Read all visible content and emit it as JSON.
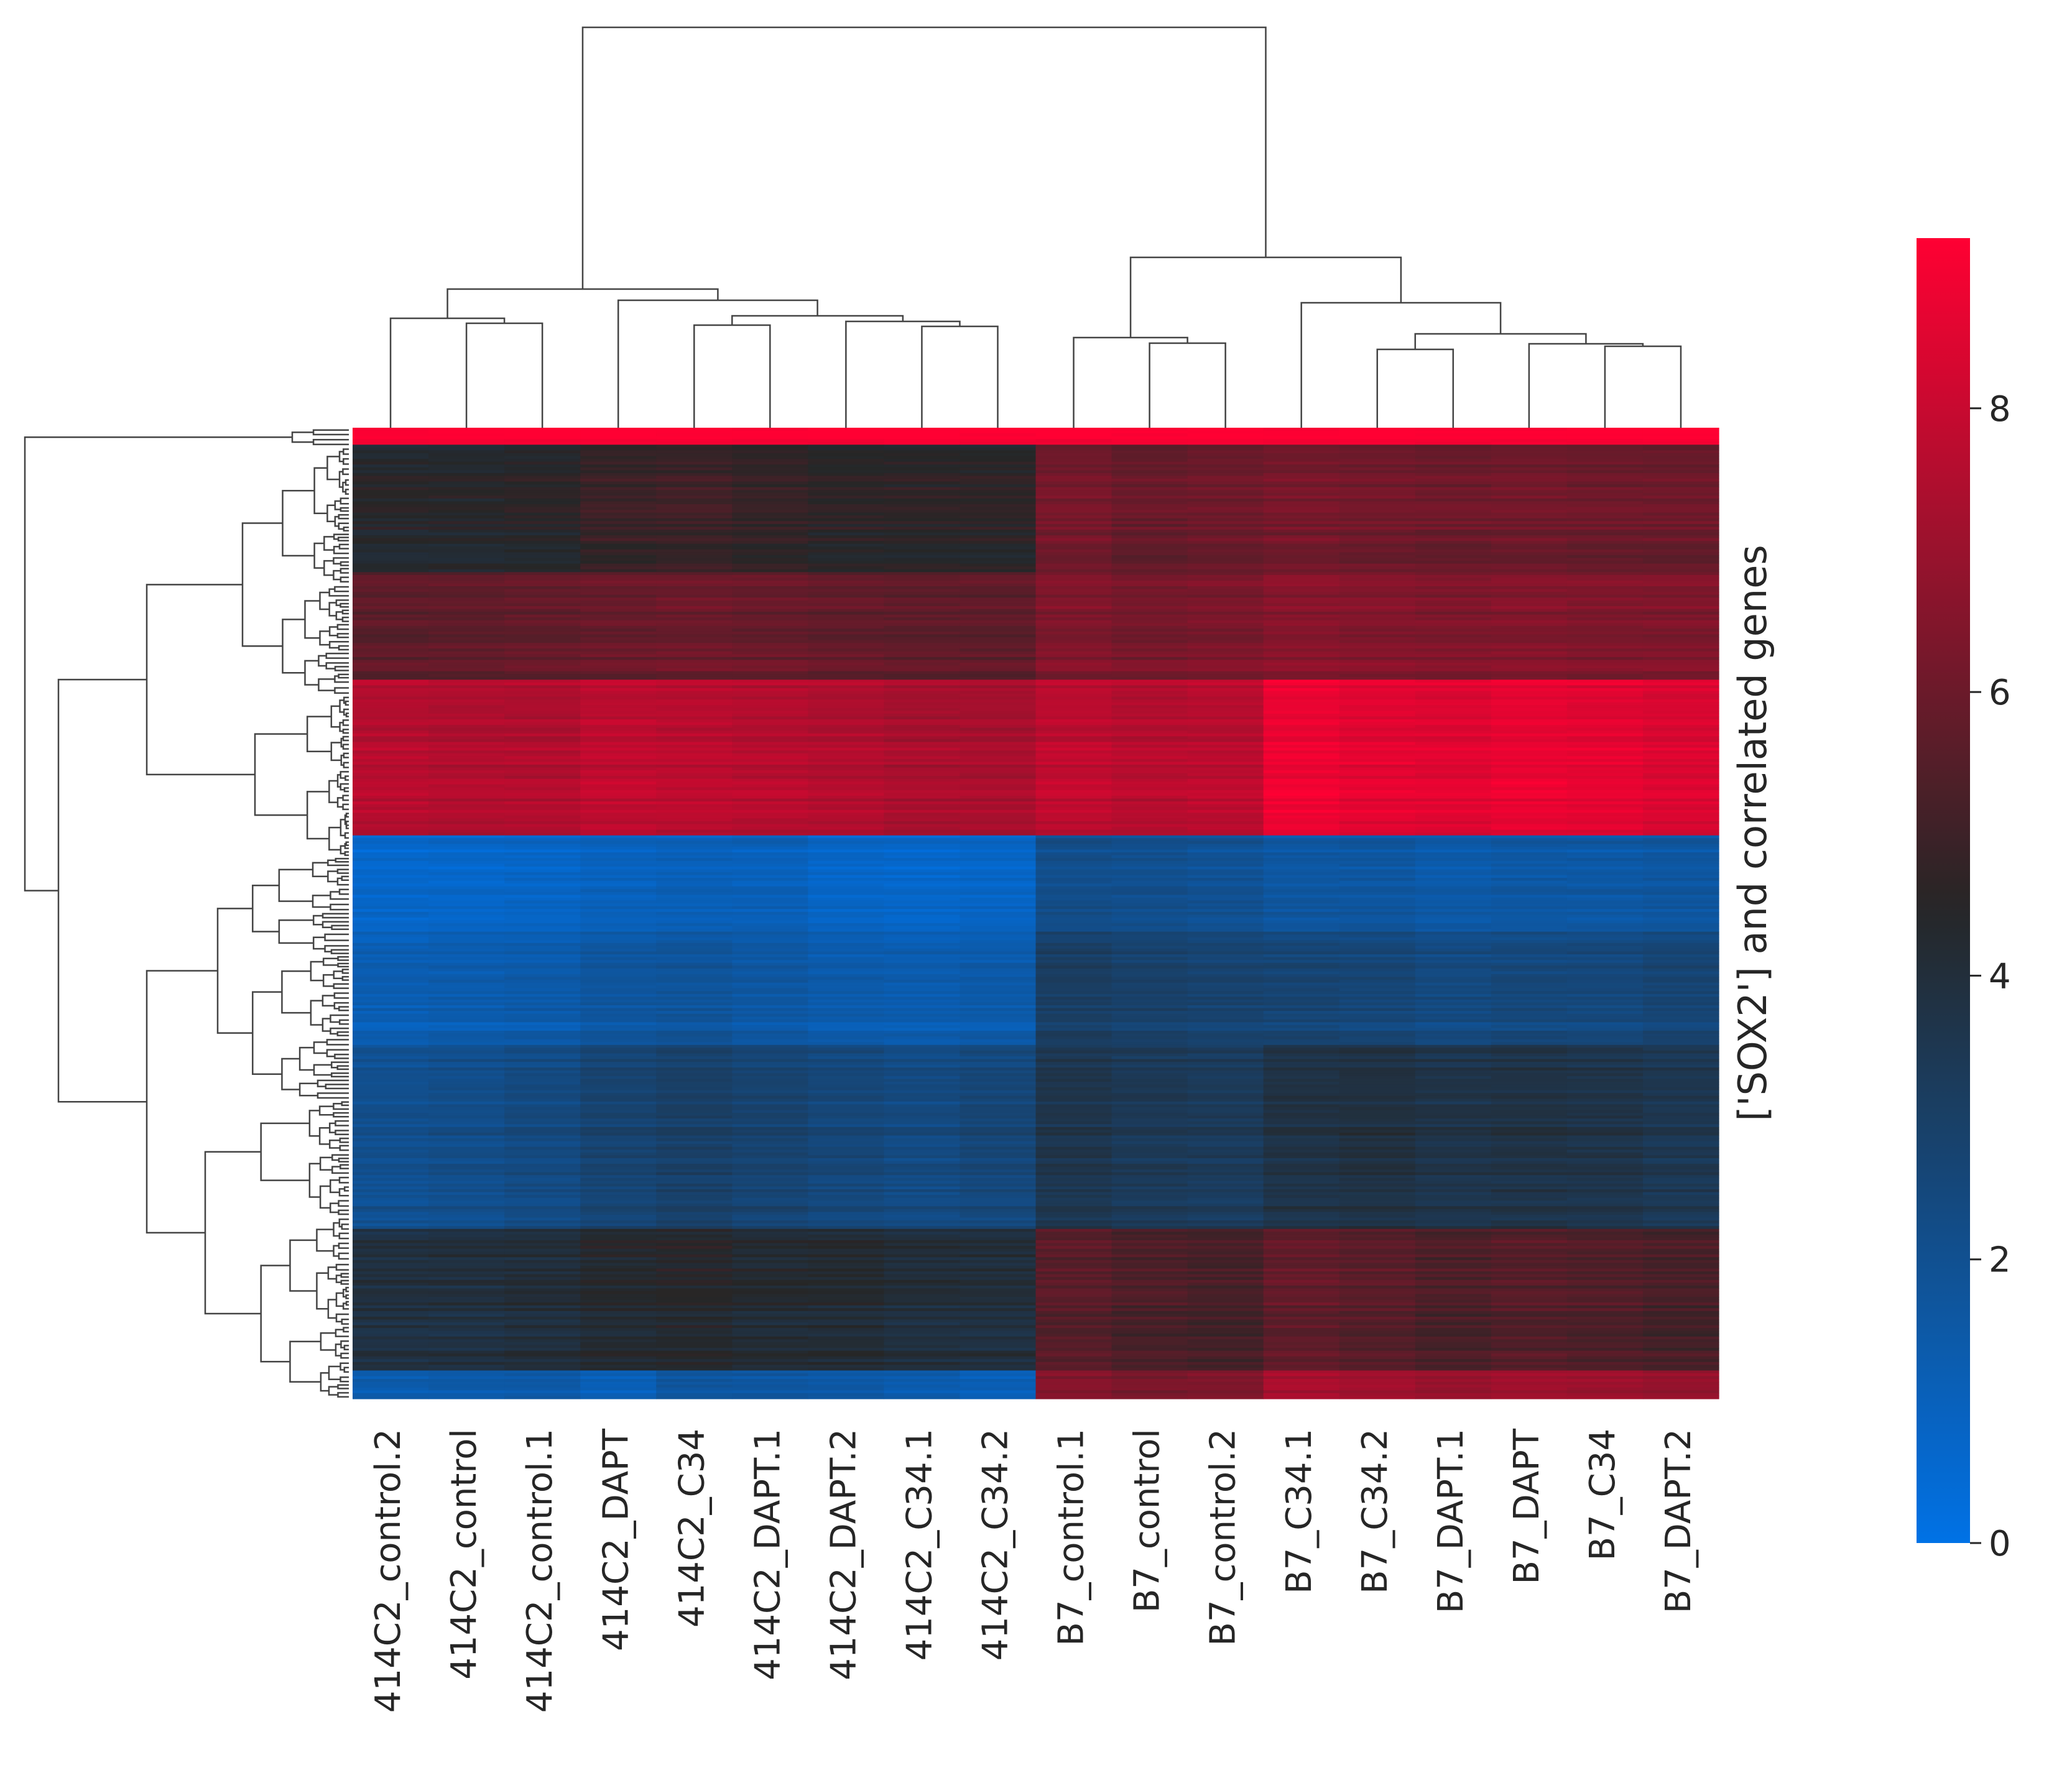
{
  "chart_data": {
    "type": "heatmap",
    "subtype": "clustermap",
    "ylabel": "['SOX2'] and correlated genes",
    "xlabel": "",
    "columns": [
      "414C2_control.2",
      "414C2_control",
      "414C2_control.1",
      "414C2_DAPT",
      "414C2_C34",
      "414C2_DAPT.1",
      "414C2_DAPT.2",
      "414C2_C34.1",
      "414C2_C34.2",
      "B7_control.1",
      "B7_control",
      "B7_control.2",
      "B7_C34.1",
      "B7_C34.2",
      "B7_DAPT.1",
      "B7_DAPT",
      "B7_C34",
      "B7_DAPT.2"
    ],
    "row_labels_shown": false,
    "colorbar": {
      "min": 0,
      "max": 9.2,
      "ticks": [
        0,
        2,
        4,
        6,
        8
      ],
      "tick_labels": [
        "0",
        "2",
        "4",
        "6",
        "8"
      ],
      "colormap": [
        "#0072e6",
        "#262626",
        "#ff0033"
      ],
      "center": 4.5
    },
    "row_blocks": [
      {
        "rows": 6,
        "values": [
          9.0,
          9.0,
          9.0,
          9.0,
          9.0,
          9.0,
          9.0,
          9.0,
          9.0,
          9.0,
          9.0,
          9.0,
          9.0,
          9.0,
          9.0,
          9.0,
          9.0,
          9.0
        ]
      },
      {
        "rows": 45,
        "values": [
          4.4,
          4.4,
          4.5,
          4.9,
          5.0,
          4.8,
          4.6,
          4.6,
          4.6,
          6.2,
          5.9,
          6.0,
          6.2,
          6.1,
          6.0,
          6.1,
          6.0,
          6.0
        ]
      },
      {
        "rows": 38,
        "values": [
          5.7,
          5.7,
          5.8,
          5.9,
          6.0,
          5.9,
          5.8,
          5.7,
          5.7,
          6.4,
          6.2,
          6.3,
          6.6,
          6.5,
          6.4,
          6.5,
          6.4,
          6.4
        ]
      },
      {
        "rows": 55,
        "values": [
          7.6,
          7.5,
          7.5,
          7.8,
          7.7,
          7.6,
          7.5,
          7.3,
          7.3,
          7.8,
          7.6,
          7.7,
          8.8,
          8.6,
          8.5,
          8.7,
          8.6,
          8.4
        ]
      },
      {
        "rows": 34,
        "values": [
          0.6,
          0.6,
          0.7,
          0.9,
          1.0,
          1.0,
          0.7,
          0.6,
          0.7,
          2.1,
          2.0,
          1.9,
          1.6,
          1.6,
          1.4,
          1.5,
          1.5,
          1.6
        ]
      },
      {
        "rows": 40,
        "values": [
          1.1,
          1.2,
          1.3,
          1.6,
          1.7,
          1.5,
          1.3,
          1.2,
          1.3,
          3.0,
          2.8,
          2.7,
          2.6,
          2.5,
          2.3,
          2.4,
          2.4,
          2.6
        ]
      },
      {
        "rows": 65,
        "values": [
          2.1,
          2.2,
          2.4,
          2.8,
          3.0,
          2.8,
          2.6,
          2.4,
          2.6,
          3.6,
          3.4,
          3.3,
          3.8,
          3.9,
          3.7,
          3.8,
          3.7,
          3.5
        ]
      },
      {
        "rows": 50,
        "values": [
          3.9,
          3.9,
          4.0,
          4.3,
          4.4,
          4.2,
          4.2,
          4.0,
          4.0,
          5.6,
          5.3,
          5.2,
          5.8,
          5.6,
          5.3,
          5.5,
          5.4,
          5.2
        ]
      },
      {
        "rows": 10,
        "values": [
          1.2,
          1.3,
          1.3,
          1.0,
          1.6,
          1.5,
          1.4,
          1.2,
          1.0,
          6.4,
          6.2,
          6.3,
          7.2,
          7.0,
          6.8,
          7.0,
          6.9,
          6.8
        ]
      }
    ]
  }
}
